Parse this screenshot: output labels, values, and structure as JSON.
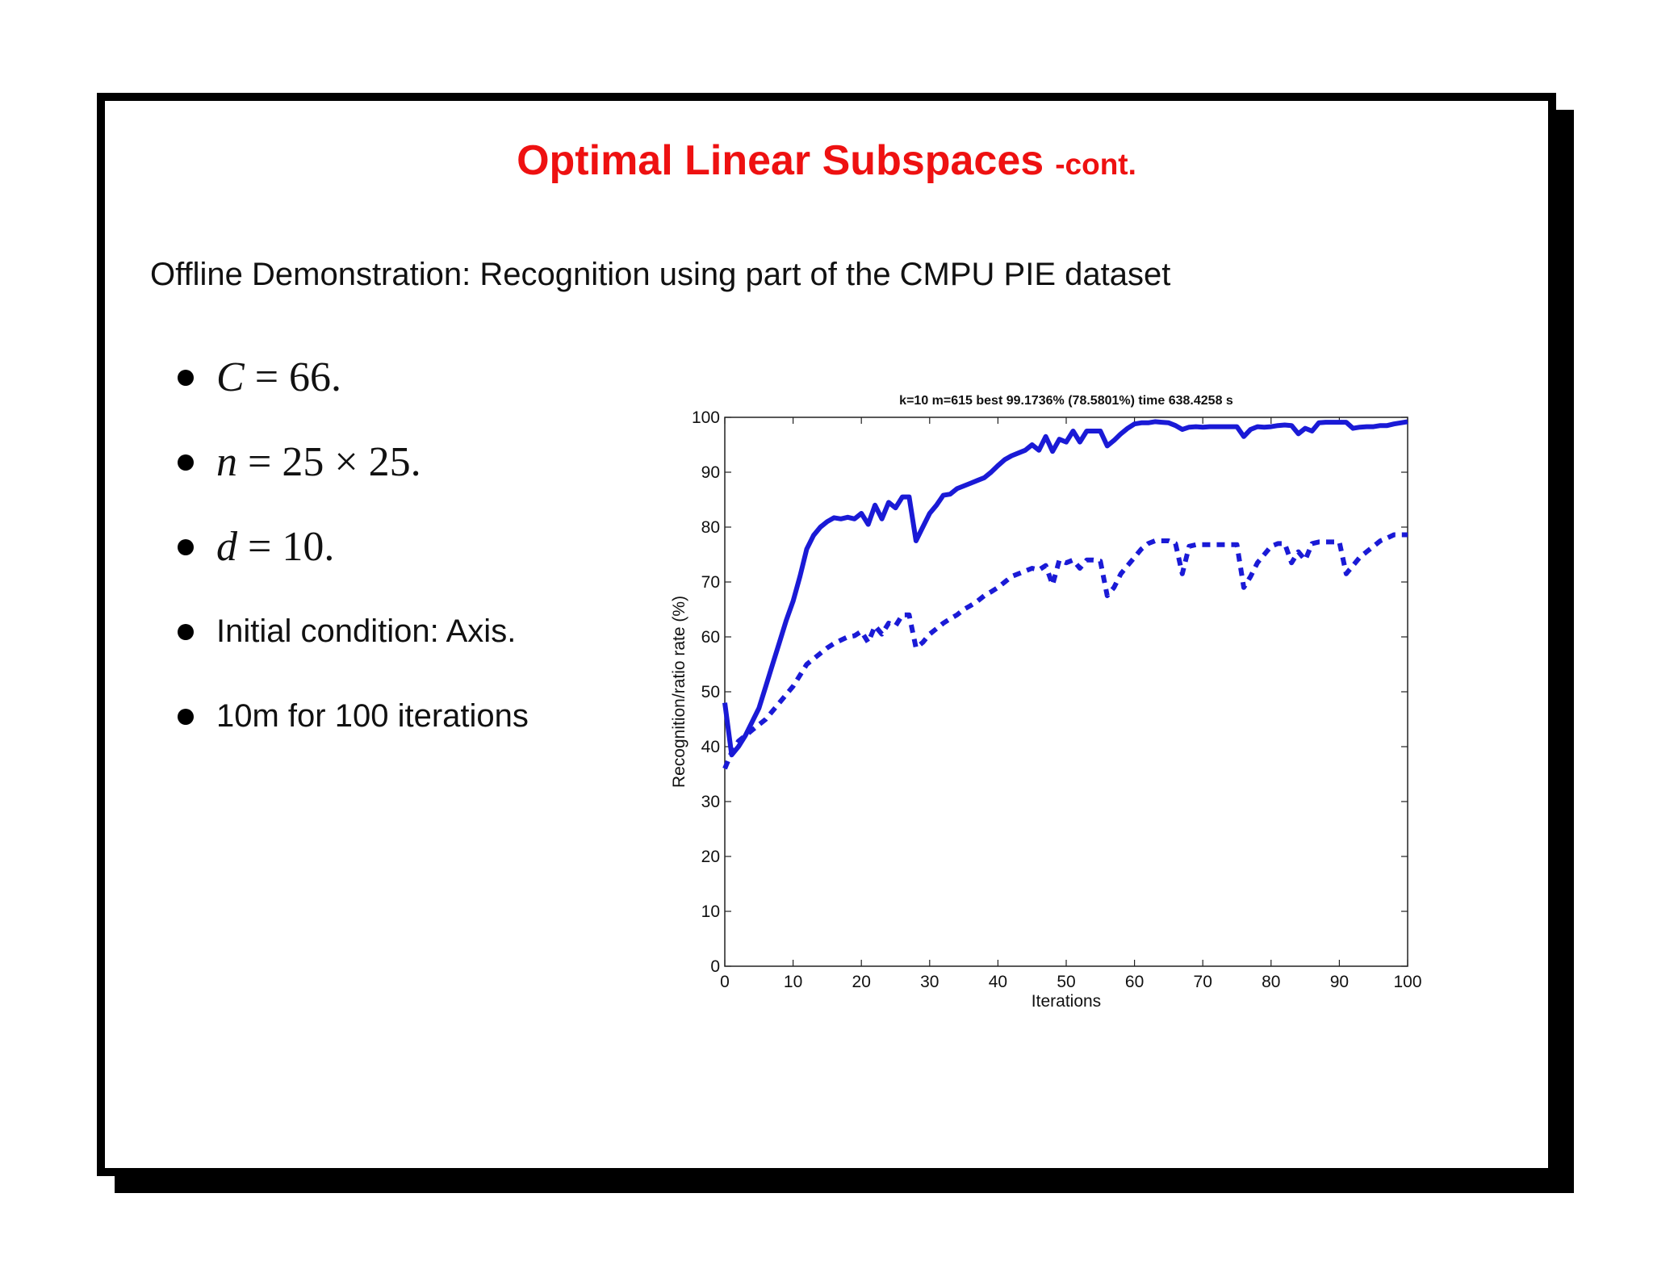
{
  "slide": {
    "title": "Optimal Linear Subspaces",
    "title_suffix": "-cont.",
    "subtitle": "Offline Demonstration: Recognition using part of the CMPU PIE dataset",
    "bullets": {
      "b1": {
        "var": "C",
        "rest": " = 66."
      },
      "b2": {
        "var": "n",
        "rest": " = 25 × 25."
      },
      "b3": {
        "var": "d",
        "rest": " = 10."
      },
      "b4": "Initial condition: Axis.",
      "b5": "10m for 100 iterations"
    },
    "colors": {
      "title": "#ee1111",
      "series": "#1a1ad6"
    }
  },
  "chart_data": {
    "type": "line",
    "title": "k=10 m=615 best 99.1736% (78.5801%) time 638.4258 s",
    "xlabel": "Iterations",
    "ylabel": "Recognition/ratio rate (%)",
    "xlim": [
      0,
      100
    ],
    "ylim": [
      0,
      100
    ],
    "xticks": [
      0,
      10,
      20,
      30,
      40,
      50,
      60,
      70,
      80,
      90,
      100
    ],
    "yticks": [
      0,
      10,
      20,
      30,
      40,
      50,
      60,
      70,
      80,
      90,
      100
    ],
    "grid": false,
    "series": [
      {
        "style": "solid",
        "color": "#1a1ad6",
        "x": [
          0,
          1,
          2,
          3,
          4,
          5,
          6,
          7,
          8,
          9,
          10,
          11,
          12,
          13,
          14,
          15,
          16,
          17,
          18,
          19,
          20,
          21,
          22,
          23,
          24,
          25,
          26,
          27,
          28,
          29,
          30,
          31,
          32,
          33,
          34,
          35,
          36,
          37,
          38,
          39,
          40,
          41,
          42,
          43,
          44,
          45,
          46,
          47,
          48,
          49,
          50,
          51,
          52,
          53,
          54,
          55,
          56,
          57,
          58,
          59,
          60,
          61,
          62,
          63,
          64,
          65,
          66,
          67,
          68,
          69,
          70,
          71,
          72,
          73,
          74,
          75,
          76,
          77,
          78,
          79,
          80,
          81,
          82,
          83,
          84,
          85,
          86,
          87,
          88,
          89,
          90,
          91,
          92,
          93,
          94,
          95,
          96,
          97,
          98,
          99,
          100
        ],
        "y": [
          48,
          38.5,
          40,
          42,
          44.5,
          47,
          51,
          55,
          59,
          63,
          66.5,
          71,
          76,
          78.5,
          80,
          81,
          81.7,
          81.5,
          81.8,
          81.5,
          82.5,
          80.5,
          84,
          81.5,
          84.5,
          83.5,
          85.5,
          85.5,
          77.5,
          80,
          82.5,
          84,
          85.8,
          86,
          87,
          87.5,
          88,
          88.5,
          89,
          90,
          91.2,
          92.3,
          93,
          93.5,
          94,
          95,
          94,
          96.5,
          93.8,
          96,
          95.5,
          97.5,
          95.5,
          97.5,
          97.5,
          97.5,
          94.8,
          95.8,
          97,
          98,
          98.8,
          99,
          99,
          99.2,
          99.1,
          99,
          98.5,
          97.8,
          98.2,
          98.3,
          98.2,
          98.3,
          98.3,
          98.3,
          98.3,
          98.3,
          96.5,
          97.8,
          98.3,
          98.2,
          98.3,
          98.5,
          98.6,
          98.5,
          97,
          98,
          97.5,
          99,
          99.1,
          99.1,
          99.1,
          99.1,
          98,
          98.2,
          98.3,
          98.3,
          98.5,
          98.5,
          98.8,
          99,
          99.2
        ]
      },
      {
        "style": "dashed",
        "color": "#1a1ad6",
        "x": [
          0,
          1,
          2,
          3,
          4,
          5,
          6,
          7,
          8,
          9,
          10,
          11,
          12,
          13,
          14,
          15,
          16,
          17,
          18,
          19,
          20,
          21,
          22,
          23,
          24,
          25,
          26,
          27,
          28,
          29,
          30,
          31,
          32,
          33,
          34,
          35,
          36,
          37,
          38,
          39,
          40,
          41,
          42,
          43,
          44,
          45,
          46,
          47,
          48,
          49,
          50,
          51,
          52,
          53,
          54,
          55,
          56,
          57,
          58,
          59,
          60,
          61,
          62,
          63,
          64,
          65,
          66,
          67,
          68,
          69,
          70,
          71,
          72,
          73,
          74,
          75,
          76,
          77,
          78,
          79,
          80,
          81,
          82,
          83,
          84,
          85,
          86,
          87,
          88,
          89,
          90,
          91,
          92,
          93,
          94,
          95,
          96,
          97,
          98,
          99,
          100
        ],
        "y": [
          36,
          39,
          41,
          42,
          43,
          44,
          45,
          46.5,
          48,
          49.5,
          51,
          53,
          55,
          56,
          57,
          58,
          58.8,
          59.4,
          60,
          60.2,
          61,
          59,
          62,
          60.5,
          62.5,
          62,
          64,
          64,
          58,
          59,
          60.5,
          61.5,
          62.5,
          63.3,
          64,
          65,
          65.7,
          66.5,
          67.5,
          68.2,
          69,
          70,
          71,
          71.5,
          72,
          72.5,
          72.2,
          73,
          69.5,
          74,
          73.5,
          74,
          72.5,
          74,
          74,
          73.8,
          67.5,
          69,
          71.5,
          73,
          74.5,
          76,
          77,
          77.5,
          77.5,
          77.5,
          77,
          71.5,
          76.5,
          76.8,
          76.8,
          76.8,
          76.8,
          76.8,
          76.8,
          76.8,
          69,
          71,
          73.5,
          75,
          76.5,
          77,
          77,
          73.5,
          75.5,
          74,
          77,
          77.3,
          77.3,
          77.3,
          77.3,
          71.5,
          73,
          74.5,
          75.5,
          76.5,
          77.5,
          78,
          78.6,
          78.6,
          78.6
        ]
      }
    ]
  }
}
